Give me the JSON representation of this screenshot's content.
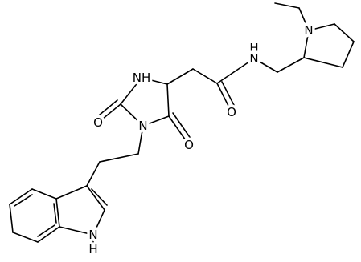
{
  "atom_labels": [
    "NH",
    "O",
    "N",
    "O",
    "O",
    "H",
    "N",
    "N",
    "N",
    "H"
  ]
}
